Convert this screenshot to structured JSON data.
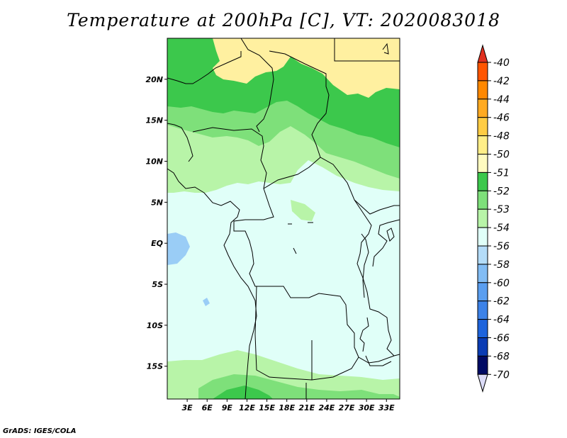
{
  "title": "Temperature at 200hPa [C], VT: 2020083018",
  "credit": "GrADS: IGES/COLA",
  "map": {
    "lon_range": [
      0,
      35
    ],
    "lat_range": [
      -19,
      25
    ],
    "lon_ticks": [
      "3E",
      "6E",
      "9E",
      "12E",
      "15E",
      "18E",
      "21E",
      "24E",
      "27E",
      "30E",
      "33E"
    ],
    "lat_ticks": [
      "20N",
      "15N",
      "10N",
      "5N",
      "EQ",
      "5S",
      "10S",
      "15S"
    ],
    "region_colors": {
      "yellow": "#fff0a0",
      "green_dark": "#3cc84c",
      "green_mid": "#7ee07a",
      "green_light": "#b8f4a8",
      "cyan_light": "#e0fff8",
      "blue_light": "#9acdf6"
    }
  },
  "legend": {
    "labels": [
      "-40",
      "-42",
      "-44",
      "-46",
      "-48",
      "-50",
      "-51",
      "-52",
      "-53",
      "-54",
      "-56",
      "-58",
      "-60",
      "-62",
      "-64",
      "-66",
      "-68",
      "-70"
    ],
    "colors": [
      "#ff2200",
      "#ff5500",
      "#ff8800",
      "#ffaa22",
      "#ffcc44",
      "#ffee88",
      "#fffbc0",
      "#3cc84c",
      "#7ee07a",
      "#b8f4a8",
      "#e0fff8",
      "#b4dcf8",
      "#82bcf4",
      "#5a9ef0",
      "#3c82e8",
      "#1e64dc",
      "#0a3cb4",
      "#000a64"
    ],
    "top_arrow_color": "#e03020",
    "bottom_arrow_color": "#dcdcf8"
  }
}
